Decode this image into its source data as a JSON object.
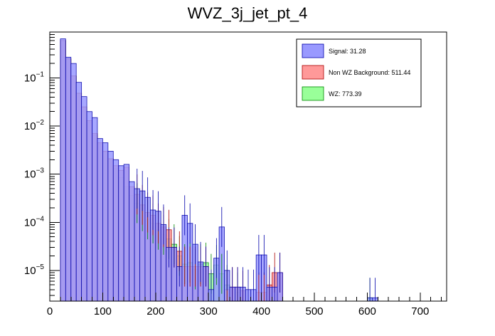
{
  "chart_data": {
    "type": "bar",
    "title": "WVZ_3j_jet_pt_4",
    "xlabel": "",
    "ylabel": "",
    "xlim": [
      0,
      750
    ],
    "ylim": [
      2.3e-06,
      0.9
    ],
    "ylog": true,
    "bin_width": 10,
    "x_ticks": [
      0,
      100,
      200,
      300,
      400,
      500,
      600,
      700
    ],
    "x_tick_labels": [
      "0",
      "100",
      "200",
      "300",
      "400",
      "500",
      "600",
      "700"
    ],
    "y_ticks": [
      1e-05,
      0.0001,
      0.001,
      0.01,
      0.1
    ],
    "y_tick_labels": [
      {
        "base": "10",
        "exp": "−5"
      },
      {
        "base": "10",
        "exp": "−4"
      },
      {
        "base": "10",
        "exp": "−3"
      },
      {
        "base": "10",
        "exp": "−2"
      },
      {
        "base": "10",
        "exp": "−1"
      }
    ],
    "grid": false,
    "legend_position": "top-right",
    "series": [
      {
        "name": "WZ: 773.39",
        "color": "#99ff99",
        "stroke": "#008800",
        "bins_low_edge": [
          20,
          30,
          40,
          50,
          60,
          70,
          80,
          90,
          100,
          110,
          120,
          130,
          140,
          150,
          160,
          170,
          180,
          190,
          200,
          210,
          220,
          230,
          240,
          250,
          260,
          270,
          280,
          290,
          300,
          310,
          320,
          330,
          350,
          600
        ],
        "values": [
          0.6,
          0.25,
          0.11,
          0.048,
          0.025,
          0.012,
          0.0065,
          0.0043,
          0.0029,
          0.002,
          0.0013,
          0.00085,
          0.00055,
          0.00036,
          0.00025,
          0.00017,
          0.000115,
          9.5e-05,
          7e-05,
          5.5e-05,
          4.5e-05,
          3.5e-05,
          2e-05,
          1.35e-05,
          1.45e-05,
          1.05e-05,
          1.35e-05,
          1.45e-05,
          8.5e-06,
          1.3e-05,
          8.5e-06,
          5e-06,
          3.5e-06,
          2.7e-06
        ]
      },
      {
        "name": "Non WZ Background: 511.44",
        "color": "#ff9999",
        "stroke": "#aa0000",
        "bins_low_edge": [
          20,
          30,
          40,
          50,
          60,
          70,
          80,
          90,
          100,
          110,
          120,
          130,
          140,
          150,
          160,
          170,
          180,
          190,
          200,
          210,
          220,
          230,
          240,
          250,
          260,
          270,
          280,
          290,
          330,
          340,
          350,
          360,
          390,
          400,
          410,
          420,
          430
        ],
        "values": [
          0.6,
          0.25,
          0.11,
          0.048,
          0.025,
          0.013,
          0.007,
          0.0045,
          0.003,
          0.0021,
          0.0015,
          0.0012,
          0.0014,
          0.00055,
          0.00038,
          0.00023,
          0.00016,
          0.00014,
          9.5e-05,
          8e-05,
          7e-05,
          3e-05,
          2.5e-05,
          1.2e-05,
          1.2e-05,
          1.2e-05,
          1.2e-05,
          1.2e-05,
          4e-06,
          4.5e-06,
          4.5e-06,
          3.8e-06,
          3.5e-06,
          3.5e-06,
          5e-06,
          9e-06,
          9e-06
        ]
      },
      {
        "name": "Signal: 31.28",
        "color": "#9999ff",
        "stroke": "#0000aa",
        "bins_low_edge": [
          20,
          30,
          40,
          50,
          60,
          70,
          80,
          90,
          100,
          110,
          120,
          130,
          140,
          150,
          160,
          170,
          180,
          190,
          200,
          210,
          220,
          230,
          240,
          250,
          260,
          270,
          280,
          290,
          300,
          310,
          320,
          330,
          340,
          350,
          360,
          370,
          380,
          390,
          400,
          410,
          420,
          430,
          600,
          610
        ],
        "values": [
          0.65,
          0.27,
          0.2,
          0.081,
          0.041,
          0.02,
          0.015,
          0.0055,
          0.0045,
          0.003,
          0.002,
          0.0015,
          0.0016,
          0.0007,
          0.0005,
          0.00045,
          0.00033,
          0.00018,
          0.00017,
          9e-05,
          3e-05,
          3e-05,
          1.2e-05,
          0.00014,
          9.5e-05,
          3.5e-05,
          1.5e-05,
          1.2e-05,
          4e-06,
          1.8e-05,
          8e-05,
          1e-05,
          4.5e-06,
          4.5e-06,
          4.5e-06,
          4e-06,
          4e-06,
          2.1e-05,
          2.1e-05,
          4.5e-06,
          4.5e-06,
          9e-06,
          2.7e-06,
          2.7e-06
        ]
      }
    ]
  }
}
